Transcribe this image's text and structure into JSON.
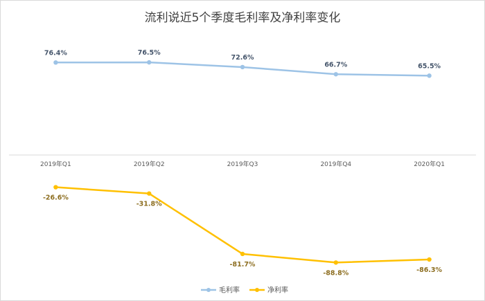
{
  "chart_data": {
    "type": "line",
    "title": "流利说近5个季度毛利率及净利率变化",
    "categories": [
      "2019年Q1",
      "2019年Q2",
      "2019年Q3",
      "2019年Q4",
      "2020年Q1"
    ],
    "value_format": "percent",
    "series": [
      {
        "name": "毛利率",
        "values": [
          76.4,
          76.5,
          72.6,
          66.7,
          65.5
        ],
        "labels": [
          "76.4%",
          "76.5%",
          "72.6%",
          "66.7%",
          "65.5%"
        ],
        "color": "#9dc3e6",
        "label_color": "#44546a"
      },
      {
        "name": "净利率",
        "values": [
          -26.6,
          -31.8,
          -81.7,
          -88.8,
          -86.3
        ],
        "labels": [
          "-26.6%",
          "-31.8%",
          "-81.7%",
          "-88.8%",
          "-86.3%"
        ],
        "color": "#ffc000",
        "label_color": "#8c6d1f"
      }
    ],
    "ylim": [
      -100,
      100
    ],
    "grid": false,
    "legend_position": "bottom"
  }
}
